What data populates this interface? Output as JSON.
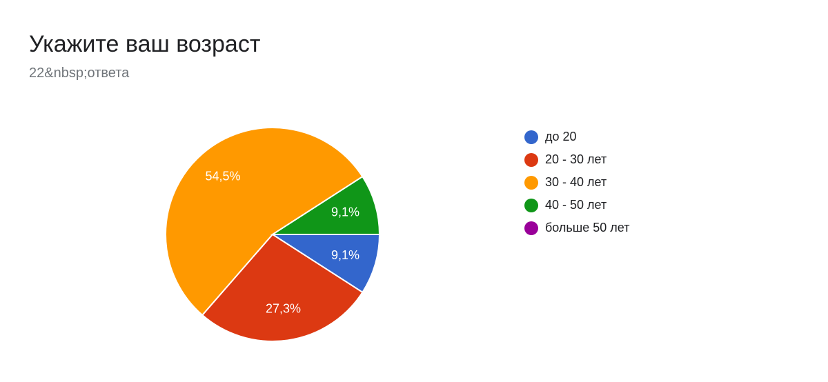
{
  "header": {
    "title": "Укажите ваш возраст",
    "subtitle": "22&nbsp;ответа"
  },
  "chart_data": {
    "type": "pie",
    "title": "Укажите ваш возраст",
    "subtitle": "22&nbsp;ответа",
    "legend_position": "right",
    "categories": [
      "до 20",
      "20 - 30 лет",
      "30 - 40 лет",
      "40 - 50 лет",
      "больше 50 лет"
    ],
    "values": [
      9.1,
      27.3,
      54.5,
      9.1,
      0
    ],
    "labels": [
      "9,1%",
      "27,3%",
      "54,5%",
      "9,1%",
      ""
    ],
    "colors": [
      "#3366cc",
      "#dc3912",
      "#ff9900",
      "#109618",
      "#990099"
    ]
  }
}
